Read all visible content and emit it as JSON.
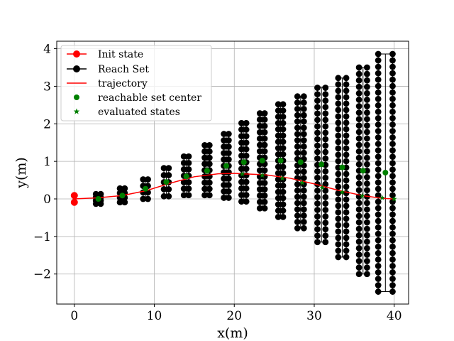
{
  "chart_data": {
    "type": "scatter",
    "title": "",
    "xlabel": "x(m)",
    "ylabel": "y(m)",
    "xlim": [
      -2.2,
      41.8
    ],
    "ylim": [
      -2.8,
      4.2
    ],
    "xticks": [
      0,
      10,
      20,
      30,
      40
    ],
    "xtick_labels": [
      "0",
      "10",
      "20",
      "30",
      "40"
    ],
    "yticks": [
      -2,
      -1,
      0,
      1,
      2,
      3,
      4
    ],
    "ytick_labels": [
      "−2",
      "−1",
      "0",
      "1",
      "2",
      "3",
      "4"
    ],
    "grid": true,
    "legend_position": "top-left",
    "legend": [
      {
        "label": "Init state",
        "style": "red-line-circle"
      },
      {
        "label": "Reach Set",
        "style": "black-line-circle"
      },
      {
        "label": "trajectory",
        "style": "red-line"
      },
      {
        "label": "reachable set center",
        "style": "green-circle"
      },
      {
        "label": "evaluated states",
        "style": "green-star"
      }
    ],
    "colors": {
      "init_state": "#ff0000",
      "reach_set": "#000000",
      "trajectory": "#ff0000",
      "reachable_set_center": "#008000",
      "evaluated_states": "#008000",
      "grid": "#b0b0b0"
    },
    "init_state": {
      "x": [
        0,
        0
      ],
      "y": [
        0.09,
        -0.09
      ]
    },
    "reach_sets": [
      {
        "x_left": 2.7,
        "x_right": 3.3,
        "y_min": -0.13,
        "y_max": 0.13,
        "center": [
          3.0,
          0.0
        ]
      },
      {
        "x_left": 5.7,
        "x_right": 6.3,
        "y_min": -0.09,
        "y_max": 0.28,
        "center": [
          6.0,
          0.09
        ]
      },
      {
        "x_left": 8.6,
        "x_right": 9.2,
        "y_min": 0.0,
        "y_max": 0.52,
        "center": [
          8.9,
          0.27
        ]
      },
      {
        "x_left": 11.2,
        "x_right": 11.8,
        "y_min": 0.07,
        "y_max": 0.82,
        "center": [
          11.5,
          0.45
        ]
      },
      {
        "x_left": 13.7,
        "x_right": 14.3,
        "y_min": 0.1,
        "y_max": 1.13,
        "center": [
          14.0,
          0.6
        ]
      },
      {
        "x_left": 16.3,
        "x_right": 16.9,
        "y_min": 0.1,
        "y_max": 1.43,
        "center": [
          16.6,
          0.75
        ]
      },
      {
        "x_left": 18.7,
        "x_right": 19.3,
        "y_min": 0.03,
        "y_max": 1.73,
        "center": [
          19.0,
          0.88
        ]
      },
      {
        "x_left": 20.9,
        "x_right": 21.5,
        "y_min": -0.07,
        "y_max": 2.02,
        "center": [
          21.2,
          0.98
        ]
      },
      {
        "x_left": 23.2,
        "x_right": 23.8,
        "y_min": -0.25,
        "y_max": 2.28,
        "center": [
          23.5,
          1.02
        ]
      },
      {
        "x_left": 25.5,
        "x_right": 26.1,
        "y_min": -0.48,
        "y_max": 2.52,
        "center": [
          25.8,
          1.02
        ]
      },
      {
        "x_left": 27.9,
        "x_right": 28.7,
        "y_min": -0.78,
        "y_max": 2.73,
        "center": [
          28.3,
          0.98
        ]
      },
      {
        "x_left": 30.4,
        "x_right": 31.4,
        "y_min": -1.15,
        "y_max": 2.96,
        "center": [
          30.9,
          0.92
        ]
      },
      {
        "x_left": 33.0,
        "x_right": 34.0,
        "y_min": -1.55,
        "y_max": 3.22,
        "center": [
          33.5,
          0.84
        ]
      },
      {
        "x_left": 35.6,
        "x_right": 36.6,
        "y_min": -2.0,
        "y_max": 3.5,
        "center": [
          36.1,
          0.75
        ]
      },
      {
        "x_left": 38.0,
        "x_right": 39.8,
        "y_min": -2.47,
        "y_max": 3.86,
        "center": [
          38.9,
          0.7
        ]
      }
    ],
    "trajectory": {
      "x": [
        0,
        3,
        6,
        9,
        12,
        15,
        18,
        20,
        21,
        24,
        27,
        30,
        33,
        36,
        38,
        39,
        40
      ],
      "y": [
        0,
        0.03,
        0.09,
        0.22,
        0.42,
        0.59,
        0.67,
        0.68,
        0.67,
        0.64,
        0.55,
        0.4,
        0.23,
        0.09,
        0.03,
        0.01,
        0.0
      ]
    },
    "evaluated_states": {
      "x": [
        21,
        23.5,
        26,
        28.5,
        31,
        33.5,
        36,
        38.5,
        40
      ],
      "y": [
        0.66,
        0.63,
        0.55,
        0.43,
        0.3,
        0.18,
        0.08,
        0.03,
        0.0
      ]
    }
  }
}
